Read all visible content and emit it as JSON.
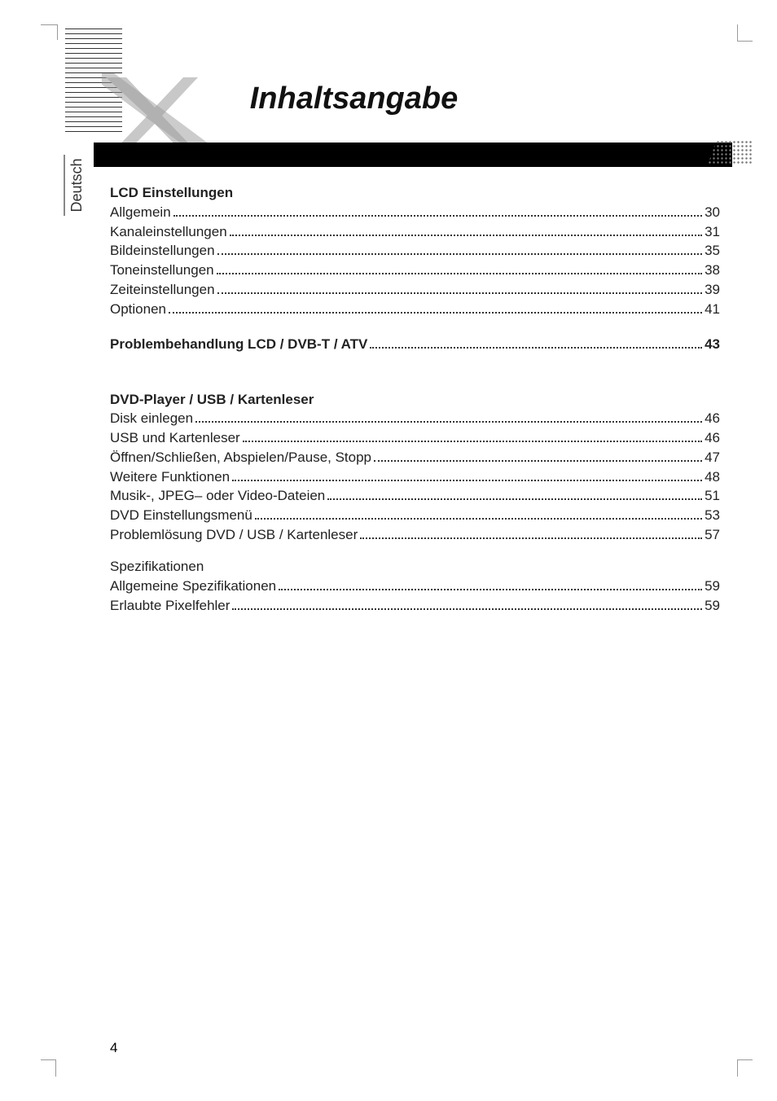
{
  "title": "Inhaltsangabe",
  "sideTab": "Deutsch",
  "pageNumber": "4",
  "sections": [
    {
      "heading": "LCD Einstellungen",
      "entries": [
        {
          "label": "Allgemein",
          "page": "30"
        },
        {
          "label": "Kanaleinstellungen",
          "page": "31"
        },
        {
          "label": "Bildeinstellungen",
          "page": "35"
        },
        {
          "label": "Toneinstellungen",
          "page": "38"
        },
        {
          "label": "Zeiteinstellungen",
          "page": "39"
        },
        {
          "label": "Optionen",
          "page": "41"
        }
      ]
    }
  ],
  "standalone": {
    "label": "Problembehandlung LCD / DVB-T / ATV",
    "page": "43"
  },
  "sections2": [
    {
      "heading": "DVD-Player / USB / Kartenleser",
      "entries": [
        {
          "label": "Disk einlegen",
          "page": "46"
        },
        {
          "label": "USB und Kartenleser",
          "page": "46"
        },
        {
          "label": "Öffnen/Schließen, Abspielen/Pause, Stopp",
          "page": "47"
        },
        {
          "label": "Weitere Funktionen",
          "page": "48"
        },
        {
          "label": "Musik-, JPEG– oder Video-Dateien",
          "page": "51"
        },
        {
          "label": "DVD Einstellungsmenü",
          "page": "53"
        },
        {
          "label": "Problemlösung DVD / USB / Kartenleser",
          "page": "57"
        }
      ]
    },
    {
      "heading": "Spezifikationen",
      "plain": true,
      "entries": [
        {
          "label": "Allgemeine Spezifikationen",
          "page": "59"
        },
        {
          "label": "Erlaubte Pixelfehler",
          "page": "59"
        }
      ]
    }
  ]
}
